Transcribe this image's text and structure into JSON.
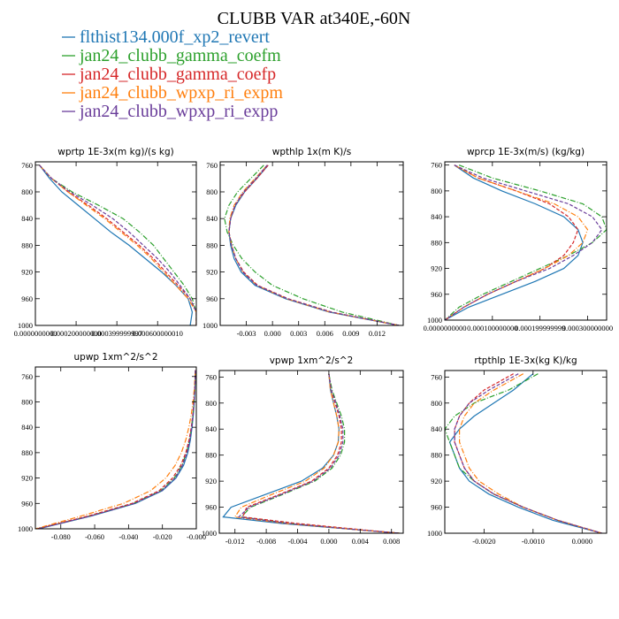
{
  "figure": {
    "title": "CLUBB VAR at340E,-60N"
  },
  "legend": [
    {
      "name": "flthist134.000f_xp2_revert",
      "color": "#1f77b4",
      "dash": "solid"
    },
    {
      "name": "jan24_clubb_gamma_coefm",
      "color": "#2ca02c",
      "dash": "dashdot"
    },
    {
      "name": "jan24_clubb_gamma_coefp",
      "color": "#d62728",
      "dash": "dashed"
    },
    {
      "name": "jan24_clubb_wpxp_ri_expm",
      "color": "#ff7f0e",
      "dash": "dashdot"
    },
    {
      "name": "jan24_clubb_wpxp_ri_expp",
      "color": "#6a3d9a",
      "dash": "dashed"
    }
  ],
  "chart_data": [
    {
      "type": "line",
      "title": "wprtp  1E-3x(m kg)/(s kg)",
      "xlim": [
        0,
        0.00079
      ],
      "ylim": [
        755,
        1000
      ],
      "y_reversed": true,
      "yticks": [
        760,
        800,
        840,
        880,
        920,
        960,
        1000
      ],
      "xticks": [
        {
          "v": 0.0,
          "label": "0.0000000000"
        },
        {
          "v": 0.0002,
          "label": "0.000200000000"
        },
        {
          "v": 0.0004,
          "label": "0.000399999997"
        },
        {
          "v": 0.0006,
          "label": "0.000600000010"
        }
      ],
      "y": [
        760,
        780,
        800,
        820,
        840,
        860,
        880,
        900,
        920,
        940,
        960,
        980,
        1000
      ],
      "series": [
        {
          "name": "flthist134.000f_xp2_revert",
          "x": [
            2e-05,
            7e-05,
            0.00013,
            0.00021,
            0.00029,
            0.00037,
            0.00046,
            0.00054,
            0.00062,
            0.00069,
            0.00075,
            0.00077,
            0.00076
          ]
        },
        {
          "name": "jan24_clubb_gamma_coefm",
          "x": [
            2e-05,
            8e-05,
            0.00018,
            0.00031,
            0.00043,
            0.00051,
            0.00058,
            0.00063,
            0.00068,
            0.00073,
            0.00077,
            0.00079,
            0.00079
          ]
        },
        {
          "name": "jan24_clubb_gamma_coefp",
          "x": [
            2e-05,
            8e-05,
            0.00016,
            0.00026,
            0.00035,
            0.00043,
            0.00051,
            0.00058,
            0.00064,
            0.0007,
            0.00076,
            0.00079,
            0.00079
          ]
        },
        {
          "name": "jan24_clubb_wpxp_ri_expm",
          "x": [
            2e-05,
            8e-05,
            0.00016,
            0.00025,
            0.00034,
            0.00042,
            0.0005,
            0.00057,
            0.00063,
            0.00069,
            0.00075,
            0.00079,
            0.00079
          ]
        },
        {
          "name": "jan24_clubb_wpxp_ri_expp",
          "x": [
            2e-05,
            8e-05,
            0.00017,
            0.00028,
            0.00038,
            0.00046,
            0.00053,
            0.0006,
            0.00066,
            0.00071,
            0.00076,
            0.00079,
            0.00079
          ]
        }
      ]
    },
    {
      "type": "line",
      "title": "wpthlp  1x(m K)/s",
      "xlim": [
        -0.006,
        0.015
      ],
      "ylim": [
        755,
        1000
      ],
      "y_reversed": true,
      "yticks": [
        760,
        800,
        840,
        880,
        920,
        960,
        1000
      ],
      "xticks": [
        {
          "v": -0.003,
          "label": "-0.003"
        },
        {
          "v": 0.0,
          "label": "0.000"
        },
        {
          "v": 0.003,
          "label": "0.003"
        },
        {
          "v": 0.006,
          "label": "0.006"
        },
        {
          "v": 0.009,
          "label": "0.009"
        },
        {
          "v": 0.012,
          "label": "0.012"
        }
      ],
      "y": [
        760,
        780,
        800,
        820,
        840,
        860,
        880,
        900,
        920,
        940,
        960,
        980,
        1000
      ],
      "series": [
        {
          "name": "flthist134.000f_xp2_revert",
          "x": [
            -0.0005,
            -0.0018,
            -0.0032,
            -0.0042,
            -0.0048,
            -0.005,
            -0.0048,
            -0.0044,
            -0.0036,
            -0.002,
            0.0015,
            0.0065,
            0.0145
          ]
        },
        {
          "name": "jan24_clubb_gamma_coefm",
          "x": [
            -0.001,
            -0.0025,
            -0.004,
            -0.005,
            -0.0055,
            -0.0052,
            -0.0045,
            -0.0035,
            -0.002,
            0.0,
            0.0035,
            0.008,
            0.0145
          ]
        },
        {
          "name": "jan24_clubb_gamma_coefp",
          "x": [
            -0.0005,
            -0.0018,
            -0.0032,
            -0.0043,
            -0.0048,
            -0.005,
            -0.0047,
            -0.0042,
            -0.0033,
            -0.0017,
            0.0018,
            0.0068,
            0.0145
          ]
        },
        {
          "name": "jan24_clubb_wpxp_ri_expm",
          "x": [
            -0.0006,
            -0.002,
            -0.0034,
            -0.0044,
            -0.0049,
            -0.005,
            -0.0047,
            -0.0042,
            -0.0034,
            -0.0018,
            0.0016,
            0.0066,
            0.0145
          ]
        },
        {
          "name": "jan24_clubb_wpxp_ri_expp",
          "x": [
            -0.0006,
            -0.0019,
            -0.0033,
            -0.0043,
            -0.0048,
            -0.005,
            -0.0047,
            -0.0042,
            -0.0034,
            -0.0018,
            0.0017,
            0.0067,
            0.0145
          ]
        }
      ]
    },
    {
      "type": "line",
      "title": "wprcp  1E-3x(m/s) (kg/kg)",
      "xlim": [
        0,
        0.00034
      ],
      "ylim": [
        755,
        1000
      ],
      "y_reversed": true,
      "yticks": [
        760,
        800,
        840,
        880,
        920,
        960,
        1000
      ],
      "xticks": [
        {
          "v": 0.0,
          "label": "0.0000000000"
        },
        {
          "v": 0.0001,
          "label": "0.000100000000"
        },
        {
          "v": 0.0002,
          "label": "0.000199999999"
        },
        {
          "v": 0.0003,
          "label": "0.000300000000"
        }
      ],
      "y": [
        760,
        780,
        800,
        820,
        840,
        860,
        880,
        900,
        920,
        940,
        960,
        980,
        1000
      ],
      "series": [
        {
          "name": "flthist134.000f_xp2_revert",
          "x": [
            2e-05,
            6e-05,
            0.00012,
            0.00019,
            0.00025,
            0.00028,
            0.00029,
            0.00028,
            0.00025,
            0.00019,
            0.00012,
            5e-05,
            0.0
          ]
        },
        {
          "name": "jan24_clubb_gamma_coefm",
          "x": [
            3e-05,
            0.0001,
            0.0002,
            0.00029,
            0.00033,
            0.00034,
            0.00031,
            0.00026,
            0.0002,
            0.00014,
            8e-05,
            3e-05,
            0.0
          ]
        },
        {
          "name": "jan24_clubb_gamma_coefp",
          "x": [
            2e-05,
            7e-05,
            0.00015,
            0.00022,
            0.00026,
            0.00028,
            0.00027,
            0.00025,
            0.00021,
            0.00015,
            9e-05,
            4e-05,
            0.0
          ]
        },
        {
          "name": "jan24_clubb_wpxp_ri_expm",
          "x": [
            2e-05,
            7e-05,
            0.00015,
            0.00023,
            0.00028,
            0.0003,
            0.00029,
            0.00026,
            0.00021,
            0.00015,
            9e-05,
            4e-05,
            0.0
          ]
        },
        {
          "name": "jan24_clubb_wpxp_ri_expp",
          "x": [
            2e-05,
            8e-05,
            0.00017,
            0.00026,
            0.00031,
            0.00033,
            0.00031,
            0.00027,
            0.00022,
            0.00015,
            9e-05,
            4e-05,
            0.0
          ]
        }
      ]
    },
    {
      "type": "line",
      "title": "upwp  1xm^2/s^2",
      "xlim": [
        -0.095,
        0.0
      ],
      "ylim": [
        745,
        1000
      ],
      "y_reversed": true,
      "yticks": [
        760,
        800,
        840,
        880,
        920,
        960,
        1000
      ],
      "xticks": [
        {
          "v": -0.08,
          "label": "-0.080"
        },
        {
          "v": -0.06,
          "label": "-0.060"
        },
        {
          "v": -0.04,
          "label": "-0.040"
        },
        {
          "v": -0.02,
          "label": "-0.020"
        },
        {
          "v": 0.0,
          "label": "-0.000"
        }
      ],
      "y": [
        750,
        780,
        800,
        820,
        840,
        860,
        880,
        900,
        920,
        940,
        960,
        980,
        1000
      ],
      "series": [
        {
          "name": "flthist134.000f_xp2_revert",
          "x": [
            -0.0005,
            -0.0008,
            -0.0012,
            -0.0018,
            -0.0025,
            -0.0035,
            -0.005,
            -0.0075,
            -0.012,
            -0.02,
            -0.036,
            -0.062,
            -0.093
          ]
        },
        {
          "name": "jan24_clubb_gamma_coefm",
          "x": [
            -0.0005,
            -0.0009,
            -0.0013,
            -0.002,
            -0.0028,
            -0.004,
            -0.0058,
            -0.0085,
            -0.013,
            -0.021,
            -0.037,
            -0.063,
            -0.094
          ]
        },
        {
          "name": "jan24_clubb_gamma_coefp",
          "x": [
            -0.0005,
            -0.0009,
            -0.0014,
            -0.0021,
            -0.003,
            -0.0043,
            -0.0062,
            -0.0092,
            -0.014,
            -0.022,
            -0.038,
            -0.064,
            -0.094
          ]
        },
        {
          "name": "jan24_clubb_wpxp_ri_expm",
          "x": [
            -0.0006,
            -0.0012,
            -0.002,
            -0.003,
            -0.0044,
            -0.0062,
            -0.0088,
            -0.0125,
            -0.018,
            -0.027,
            -0.043,
            -0.068,
            -0.095
          ]
        },
        {
          "name": "jan24_clubb_wpxp_ri_expp",
          "x": [
            -0.0005,
            -0.0009,
            -0.0013,
            -0.0019,
            -0.0027,
            -0.0038,
            -0.0055,
            -0.0082,
            -0.0125,
            -0.0205,
            -0.0365,
            -0.0625,
            -0.0935
          ]
        }
      ]
    },
    {
      "type": "line",
      "title": "vpwp  1xm^2/s^2",
      "xlim": [
        -0.014,
        0.0095
      ],
      "ylim": [
        750,
        1000
      ],
      "y_reversed": true,
      "yticks": [
        760,
        800,
        840,
        880,
        920,
        960,
        1000
      ],
      "xticks": [
        {
          "v": -0.012,
          "label": "-0.012"
        },
        {
          "v": -0.008,
          "label": "-0.008"
        },
        {
          "v": -0.004,
          "label": "-0.004"
        },
        {
          "v": 0.0,
          "label": "0.000"
        },
        {
          "v": 0.004,
          "label": "0.004"
        },
        {
          "v": 0.008,
          "label": "0.008"
        }
      ],
      "y": [
        755,
        780,
        800,
        820,
        840,
        860,
        880,
        900,
        920,
        940,
        960,
        975,
        985,
        995,
        1000
      ],
      "series": [
        {
          "name": "flthist134.000f_xp2_revert",
          "x": [
            0.0,
            0.0002,
            0.0006,
            0.001,
            0.0013,
            0.0012,
            0.0006,
            -0.0008,
            -0.0035,
            -0.008,
            -0.0125,
            -0.0135,
            -0.006,
            0.004,
            0.009
          ]
        },
        {
          "name": "jan24_clubb_gamma_coefm",
          "x": [
            0.0,
            0.0004,
            0.001,
            0.0016,
            0.002,
            0.002,
            0.0015,
            0.0004,
            -0.0018,
            -0.0058,
            -0.01,
            -0.0112,
            -0.005,
            0.004,
            0.009
          ]
        },
        {
          "name": "jan24_clubb_gamma_coefp",
          "x": [
            0.0,
            0.0003,
            0.0008,
            0.0013,
            0.0016,
            0.0016,
            0.0011,
            0.0,
            -0.0022,
            -0.0062,
            -0.0105,
            -0.011,
            -0.004,
            0.0045,
            0.009
          ]
        },
        {
          "name": "jan24_clubb_wpxp_ri_expm",
          "x": [
            0.0,
            0.0002,
            0.0006,
            0.001,
            0.0013,
            0.0012,
            0.0006,
            -0.0006,
            -0.003,
            -0.0072,
            -0.0112,
            -0.012,
            -0.0055,
            0.004,
            0.009
          ]
        },
        {
          "name": "jan24_clubb_wpxp_ri_expp",
          "x": [
            0.0,
            0.0003,
            0.0009,
            0.0014,
            0.0018,
            0.0018,
            0.0013,
            0.0002,
            -0.002,
            -0.006,
            -0.0102,
            -0.0115,
            -0.0052,
            0.004,
            0.009
          ]
        }
      ]
    },
    {
      "type": "line",
      "title": "rtpthlp  1E-3x(kg K)/kg",
      "xlim": [
        -0.0028,
        0.0005
      ],
      "ylim": [
        750,
        1000
      ],
      "y_reversed": true,
      "yticks": [
        760,
        800,
        840,
        880,
        920,
        960,
        1000
      ],
      "xticks": [
        {
          "v": -0.002,
          "label": "-0.0020"
        },
        {
          "v": -0.001,
          "label": "-0.0010"
        },
        {
          "v": 0.0,
          "label": "0.0000"
        }
      ],
      "y": [
        755,
        780,
        800,
        820,
        840,
        860,
        880,
        900,
        920,
        940,
        960,
        980,
        1000
      ],
      "series": [
        {
          "name": "flthist134.000f_xp2_revert",
          "x": [
            -0.001,
            -0.0014,
            -0.0018,
            -0.0022,
            -0.0025,
            -0.0027,
            -0.0026,
            -0.0025,
            -0.0023,
            -0.0019,
            -0.0013,
            -0.0006,
            0.0004
          ]
        },
        {
          "name": "jan24_clubb_gamma_coefm",
          "x": [
            -0.0009,
            -0.0015,
            -0.0022,
            -0.0026,
            -0.0028,
            -0.0027,
            -0.0026,
            -0.0025,
            -0.0022,
            -0.0018,
            -0.0012,
            -0.0005,
            0.0004
          ]
        },
        {
          "name": "jan24_clubb_gamma_coefp",
          "x": [
            -0.0014,
            -0.002,
            -0.0023,
            -0.0025,
            -0.0026,
            -0.0026,
            -0.0025,
            -0.0024,
            -0.0022,
            -0.0018,
            -0.0012,
            -0.0005,
            0.0004
          ]
        },
        {
          "name": "jan24_clubb_wpxp_ri_expm",
          "x": [
            -0.0012,
            -0.0018,
            -0.0022,
            -0.0024,
            -0.0025,
            -0.0025,
            -0.0024,
            -0.0023,
            -0.0021,
            -0.0017,
            -0.0012,
            -0.0005,
            0.0004
          ]
        },
        {
          "name": "jan24_clubb_wpxp_ri_expp",
          "x": [
            -0.0013,
            -0.0019,
            -0.0023,
            -0.0025,
            -0.0026,
            -0.0026,
            -0.0025,
            -0.0024,
            -0.0022,
            -0.0018,
            -0.0012,
            -0.0005,
            0.0004
          ]
        }
      ]
    }
  ]
}
